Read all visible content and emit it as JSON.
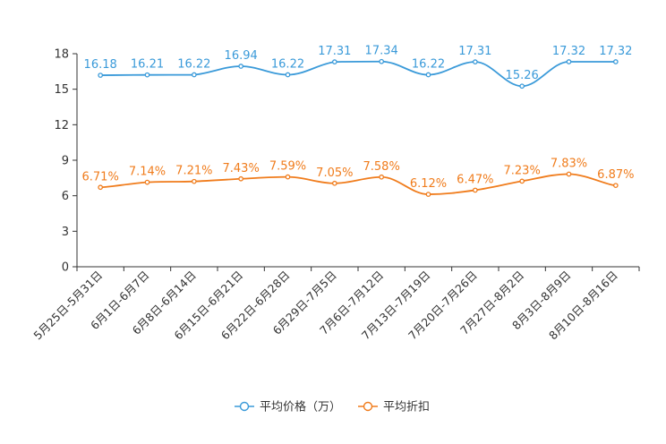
{
  "chart_data": {
    "type": "line",
    "categories": [
      "5月25日-5月31日",
      "6月1日-6月7日",
      "6月8日-6月14日",
      "6月15日-6月21日",
      "6月22日-6月28日",
      "6月29日-7月5日",
      "7月6日-7月12日",
      "7月13日-7月19日",
      "7月20日-7月26日",
      "7月27日-8月2日",
      "8月3日-8月9日",
      "8月10日-8月16日"
    ],
    "ylim": [
      0,
      18
    ],
    "yticks": [
      0,
      3,
      6,
      9,
      12,
      15,
      18
    ],
    "series": [
      {
        "name": "平均价格（万）",
        "color": "#3a9ad9",
        "values": [
          16.18,
          16.21,
          16.22,
          16.94,
          16.22,
          17.31,
          17.34,
          16.22,
          17.31,
          15.26,
          17.32,
          17.32
        ],
        "labels": [
          "16.18",
          "16.21",
          "16.22",
          "16.94",
          "16.22",
          "17.31",
          "17.34",
          "16.22",
          "17.31",
          "15.26",
          "17.32",
          "17.32"
        ]
      },
      {
        "name": "平均折扣",
        "color": "#f07c1c",
        "values": [
          6.71,
          7.14,
          7.21,
          7.43,
          7.59,
          7.05,
          7.58,
          6.12,
          6.47,
          7.23,
          7.83,
          6.87
        ],
        "labels": [
          "6.71%",
          "7.14%",
          "7.21%",
          "7.43%",
          "7.59%",
          "7.05%",
          "7.58%",
          "6.12%",
          "6.47%",
          "7.23%",
          "7.83%",
          "6.87%"
        ]
      }
    ]
  }
}
